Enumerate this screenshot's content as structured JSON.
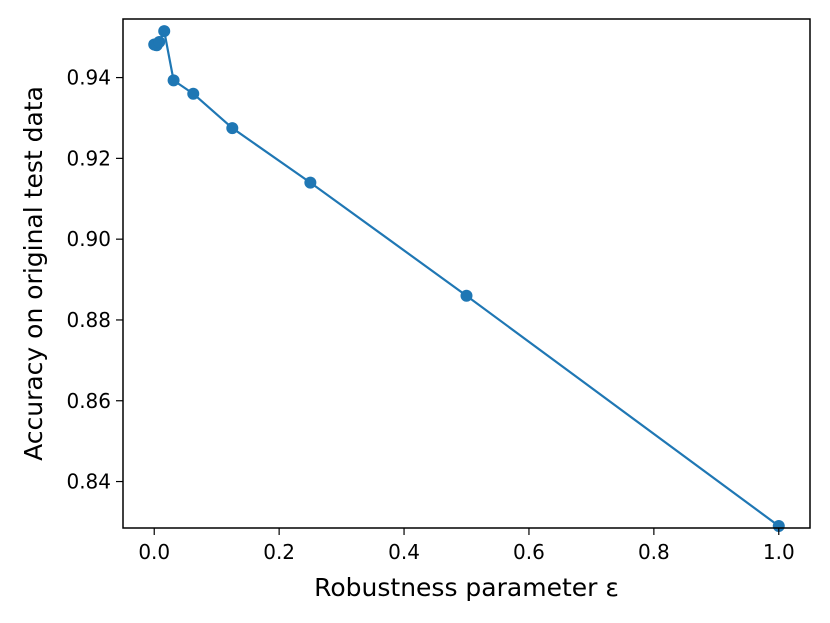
{
  "chart_data": {
    "type": "line",
    "xlabel": "Robustness parameter ε",
    "ylabel": "Accuracy on original test data",
    "xlim": [
      -0.05,
      1.05
    ],
    "ylim": [
      0.8285,
      0.9545
    ],
    "x_ticks": [
      0.0,
      0.2,
      0.4,
      0.6,
      0.8,
      1.0
    ],
    "x_tick_labels": [
      "0.0",
      "0.2",
      "0.4",
      "0.6",
      "0.8",
      "1.0"
    ],
    "y_ticks": [
      0.84,
      0.86,
      0.88,
      0.9,
      0.92,
      0.94
    ],
    "y_tick_labels": [
      "0.84",
      "0.86",
      "0.88",
      "0.90",
      "0.92",
      "0.94"
    ],
    "grid": false,
    "series": [
      {
        "color": "#1f77b4",
        "marker": "circle",
        "x": [
          0.0,
          0.002,
          0.004,
          0.008,
          0.016,
          0.031,
          0.0625,
          0.125,
          0.25,
          0.5,
          1.0
        ],
        "y": [
          0.9482,
          0.9481,
          0.948,
          0.9488,
          0.9515,
          0.9393,
          0.936,
          0.9275,
          0.914,
          0.886,
          0.829
        ]
      }
    ]
  }
}
